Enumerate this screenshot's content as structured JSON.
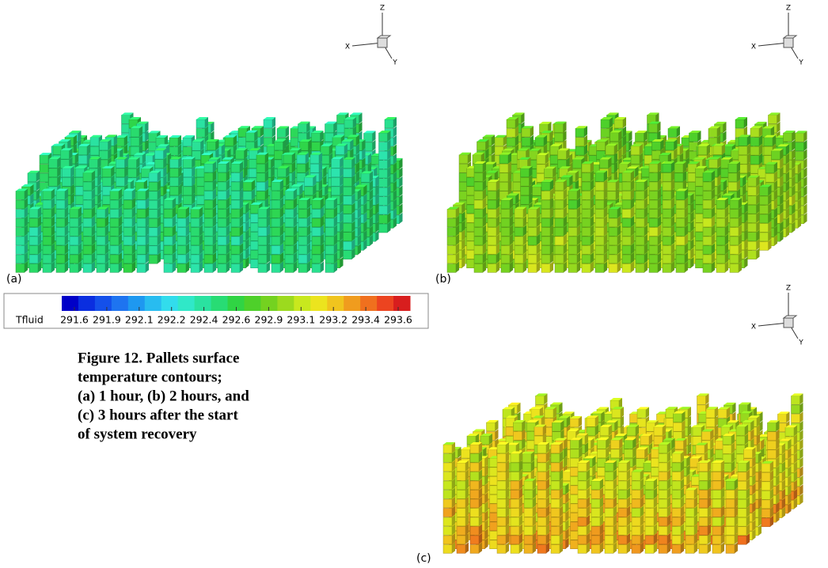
{
  "panels": [
    {
      "label": "(a)",
      "axes": {
        "x": "X",
        "y": "Y",
        "z": "Z"
      }
    },
    {
      "label": "(b)",
      "axes": {
        "x": "X",
        "y": "Y",
        "z": "Z"
      }
    },
    {
      "label": "(c)",
      "axes": {
        "x": "X",
        "y": "Y",
        "z": "Z"
      }
    }
  ],
  "colorbar": {
    "title": "Tfluid",
    "ticks": [
      291.6,
      291.9,
      292.1,
      292.2,
      292.4,
      292.6,
      292.9,
      293.1,
      293.2,
      293.4,
      293.6
    ],
    "colors": [
      "#0000c8",
      "#0a2ee0",
      "#1450ea",
      "#1e74f0",
      "#1e98f0",
      "#28bcf0",
      "#32dcec",
      "#30e8c8",
      "#2ae2a0",
      "#28dc74",
      "#30d444",
      "#4ed02a",
      "#74d220",
      "#9cda1e",
      "#c8e81e",
      "#ece41e",
      "#f0c41e",
      "#f09c1e",
      "#f0701e",
      "#ec4420",
      "#d81e1e"
    ]
  },
  "caption": {
    "lines": [
      "Figure 12. Pallets surface",
      "temperature contours;",
      "(a) 1 hour, (b) 2 hours, and",
      "(c) 3 hours after the start",
      "of system recovery"
    ]
  }
}
